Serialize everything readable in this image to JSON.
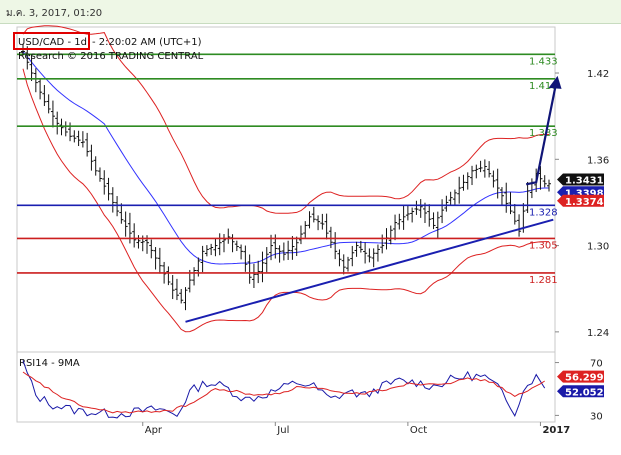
{
  "header": {
    "datetime": "ม.ค. 3, 2017, 01:20",
    "symbol": "USD/CAD - 1d",
    "time": "- 2:20:02 AM (UTC+1)",
    "credit": "Research © 2016 TRADING CENTRAL"
  },
  "colors": {
    "background": "#ffffff",
    "topbar": "#eef7e6",
    "resistance_green": "#2e8b22",
    "pivot_blue": "#1a1fb0",
    "support_red": "#cc1f1f",
    "bollinger_red": "#dd2222",
    "ma_blue": "#3333ff",
    "rsi_red": "#dd2222",
    "rsi_blue": "#1a1aa8",
    "arrow_navy": "#101577"
  },
  "chart_data": [
    {
      "type": "candlestick",
      "panel": "price",
      "y_axis": {
        "ticks": [
          1.24,
          1.3,
          1.36,
          1.42
        ],
        "tick_labels": [
          "1.24",
          "1.30",
          "1.36",
          "1.42"
        ],
        "ylim": [
          1.226,
          1.452
        ]
      },
      "x_axis": {
        "labels": [
          "Apr",
          "Jul",
          "Oct",
          "2017"
        ],
        "label_index": [
          28,
          59,
          90,
          121
        ]
      },
      "levels": [
        {
          "value": 1.433,
          "label": "1.433",
          "color": "#2e8b22"
        },
        {
          "value": 1.416,
          "label": "1.416",
          "color": "#2e8b22"
        },
        {
          "value": 1.383,
          "label": "1.383",
          "color": "#2e8b22"
        },
        {
          "value": 1.328,
          "label": "1.328",
          "color": "#1a1fb0"
        },
        {
          "value": 1.305,
          "label": "1.305",
          "color": "#cc1f1f"
        },
        {
          "value": 1.281,
          "label": "1.281",
          "color": "#cc1f1f"
        }
      ],
      "trendline": {
        "from": [
          38,
          1.247
        ],
        "to": [
          124,
          1.318
        ]
      },
      "projection_arrow": {
        "from": [
          120,
          1.344
        ],
        "to": [
          125,
          1.418
        ]
      },
      "price_tags": [
        {
          "value": 1.34316,
          "label": "1.34316",
          "bg": "#101010",
          "fg": "#ffffff"
        },
        {
          "value": 1.33985,
          "label": "1.33985",
          "bg": "#1a1fb0",
          "fg": "#ffffff"
        },
        {
          "value": 1.33741,
          "label": "1.33741",
          "bg": "#dd2222",
          "fg": "#ffffff"
        }
      ],
      "close_anchors": [
        [
          0,
          1.435
        ],
        [
          2,
          1.42
        ],
        [
          5,
          1.4
        ],
        [
          8,
          1.385
        ],
        [
          11,
          1.376
        ],
        [
          14,
          1.372
        ],
        [
          17,
          1.352
        ],
        [
          20,
          1.336
        ],
        [
          23,
          1.318
        ],
        [
          26,
          1.304
        ],
        [
          29,
          1.302
        ],
        [
          32,
          1.286
        ],
        [
          35,
          1.269
        ],
        [
          37,
          1.262
        ],
        [
          39,
          1.276
        ],
        [
          42,
          1.296
        ],
        [
          45,
          1.3
        ],
        [
          48,
          1.306
        ],
        [
          51,
          1.296
        ],
        [
          53,
          1.278
        ],
        [
          55,
          1.282
        ],
        [
          58,
          1.3
        ],
        [
          61,
          1.294
        ],
        [
          64,
          1.302
        ],
        [
          67,
          1.32
        ],
        [
          70,
          1.315
        ],
        [
          73,
          1.296
        ],
        [
          75,
          1.285
        ],
        [
          78,
          1.3
        ],
        [
          81,
          1.292
        ],
        [
          84,
          1.3
        ],
        [
          87,
          1.316
        ],
        [
          90,
          1.322
        ],
        [
          93,
          1.327
        ],
        [
          96,
          1.314
        ],
        [
          99,
          1.33
        ],
        [
          102,
          1.34
        ],
        [
          105,
          1.352
        ],
        [
          108,
          1.355
        ],
        [
          111,
          1.34
        ],
        [
          114,
          1.324
        ],
        [
          116,
          1.31
        ],
        [
          118,
          1.338
        ],
        [
          120,
          1.35
        ],
        [
          122,
          1.343
        ]
      ]
    },
    {
      "type": "line",
      "panel": "rsi",
      "title": "RSI14 - 9MA",
      "y_axis": {
        "ticks": [
          30,
          70
        ],
        "tick_labels": [
          "30",
          "70"
        ],
        "ylim": [
          25,
          78
        ]
      },
      "series": [
        {
          "name": "RSI14",
          "color": "#1a1aa8",
          "anchors": [
            [
              0,
              70
            ],
            [
              3,
              45
            ],
            [
              7,
              38
            ],
            [
              12,
              34
            ],
            [
              17,
              32
            ],
            [
              22,
              31
            ],
            [
              27,
              33
            ],
            [
              32,
              35
            ],
            [
              36,
              30
            ],
            [
              39,
              48
            ],
            [
              43,
              55
            ],
            [
              47,
              52
            ],
            [
              52,
              42
            ],
            [
              56,
              45
            ],
            [
              60,
              50
            ],
            [
              64,
              55
            ],
            [
              68,
              52
            ],
            [
              72,
              42
            ],
            [
              76,
              48
            ],
            [
              80,
              45
            ],
            [
              84,
              52
            ],
            [
              88,
              56
            ],
            [
              92,
              55
            ],
            [
              96,
              52
            ],
            [
              100,
              57
            ],
            [
              104,
              60
            ],
            [
              108,
              59
            ],
            [
              112,
              48
            ],
            [
              115,
              33
            ],
            [
              118,
              55
            ],
            [
              120,
              59
            ],
            [
              122,
              52
            ]
          ]
        },
        {
          "name": "9MA",
          "color": "#dd2222",
          "anchors": [
            [
              0,
              62
            ],
            [
              5,
              52
            ],
            [
              10,
              42
            ],
            [
              15,
              36
            ],
            [
              20,
              33
            ],
            [
              25,
              32
            ],
            [
              30,
              33
            ],
            [
              35,
              34
            ],
            [
              40,
              40
            ],
            [
              45,
              50
            ],
            [
              50,
              48
            ],
            [
              55,
              45
            ],
            [
              60,
              47
            ],
            [
              65,
              52
            ],
            [
              70,
              50
            ],
            [
              75,
              46
            ],
            [
              80,
              47
            ],
            [
              85,
              50
            ],
            [
              90,
              54
            ],
            [
              95,
              54
            ],
            [
              100,
              55
            ],
            [
              105,
              58
            ],
            [
              110,
              55
            ],
            [
              115,
              44
            ],
            [
              119,
              50
            ],
            [
              122,
              56
            ]
          ]
        }
      ],
      "value_tags": [
        {
          "value": 56.2998,
          "label": "56.2998",
          "bg": "#dd2222",
          "fg": "#ffffff"
        },
        {
          "value": 52.0522,
          "label": "52.0522",
          "bg": "#1a1aa8",
          "fg": "#ffffff"
        }
      ]
    }
  ]
}
